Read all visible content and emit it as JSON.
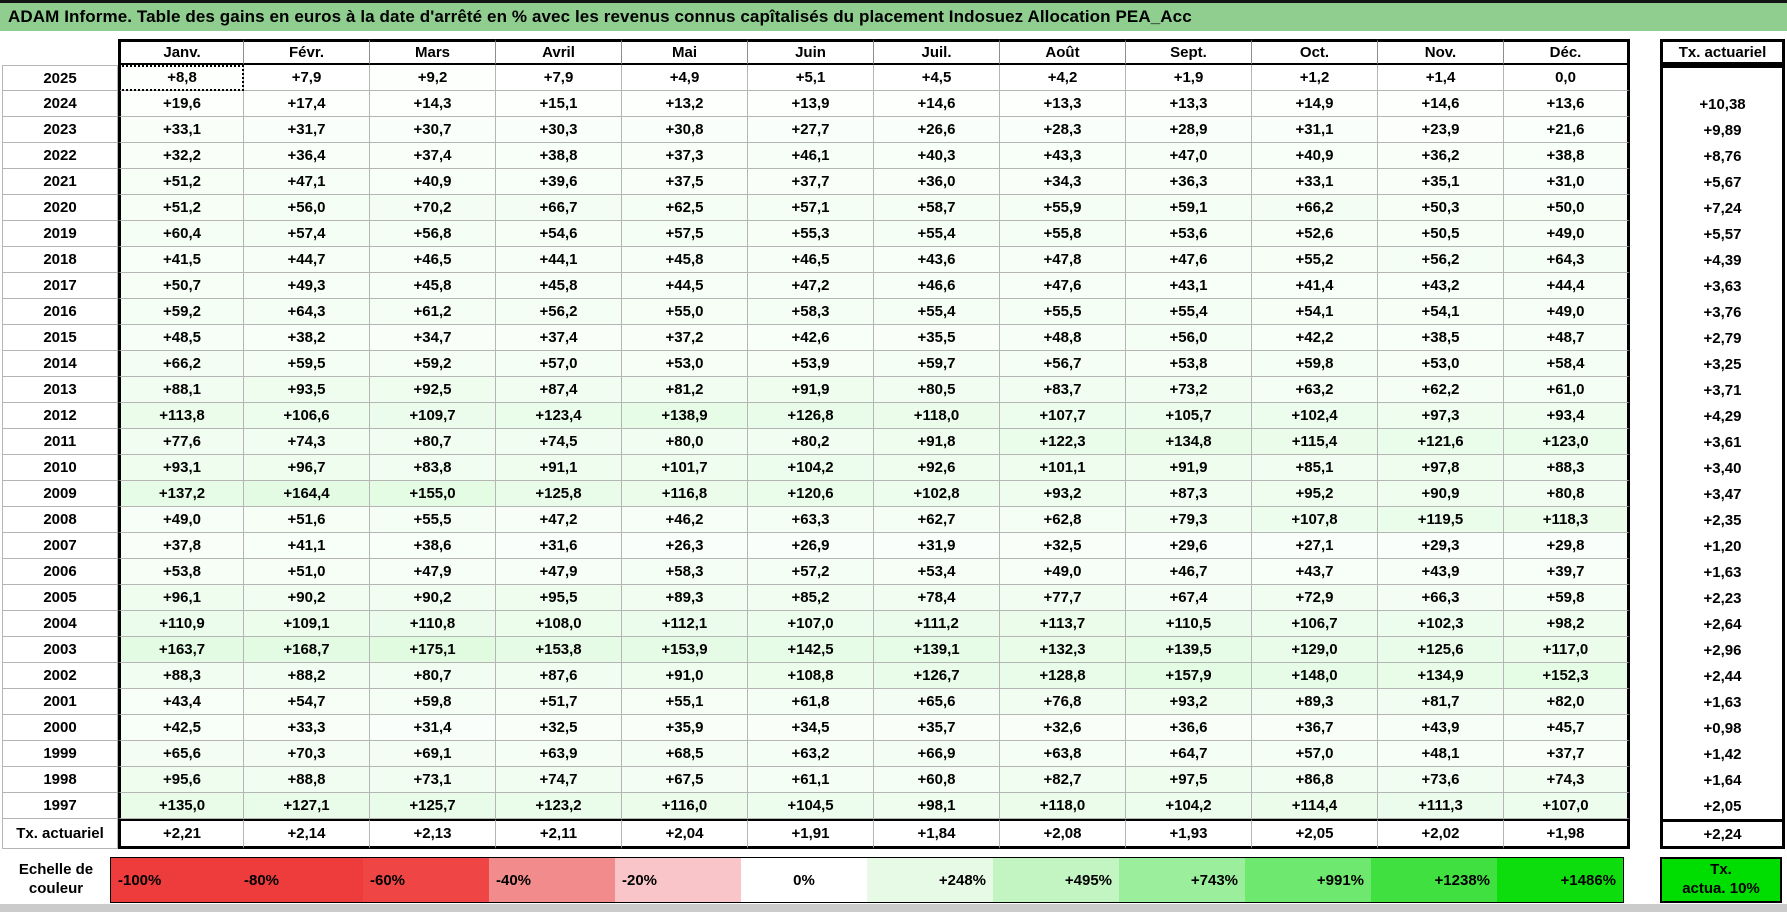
{
  "title": "ADAM Informe. Table des gains en euros à la date d'arrêté en % avec les revenus connus capîtalisés du placement Indosuez Allocation PEA_Acc",
  "colors": {
    "title_bar": "#90ce90",
    "grid_line": "#b5b5b5",
    "thick_border": "#000000",
    "positive_scale_max": "#00dd00",
    "negative_scale_max": "#ee3b3b",
    "page_bottom_strip": "#cbcbcb"
  },
  "color_scale": {
    "max_positive_percent": 1486
  },
  "table": {
    "columns": [
      "Janv.",
      "Févr.",
      "Mars",
      "Avril",
      "Mai",
      "Juin",
      "Juil.",
      "Août",
      "Sept.",
      "Oct.",
      "Nov.",
      "Déc."
    ],
    "right_column_header": "Tx. actuariel",
    "rows": [
      {
        "label": "2025",
        "values": [
          "+8,8",
          "+7,9",
          "+9,2",
          "+7,9",
          "+4,9",
          "+5,1",
          "+4,5",
          "+4,2",
          "+1,9",
          "+1,2",
          "+1,4",
          "0,0"
        ],
        "tx": ""
      },
      {
        "label": "2024",
        "values": [
          "+19,6",
          "+17,4",
          "+14,3",
          "+15,1",
          "+13,2",
          "+13,9",
          "+14,6",
          "+13,3",
          "+13,3",
          "+14,9",
          "+14,6",
          "+13,6"
        ],
        "tx": "+10,38"
      },
      {
        "label": "2023",
        "values": [
          "+33,1",
          "+31,7",
          "+30,7",
          "+30,3",
          "+30,8",
          "+27,7",
          "+26,6",
          "+28,3",
          "+28,9",
          "+31,1",
          "+23,9",
          "+21,6"
        ],
        "tx": "+9,89"
      },
      {
        "label": "2022",
        "values": [
          "+32,2",
          "+36,4",
          "+37,4",
          "+38,8",
          "+37,3",
          "+46,1",
          "+40,3",
          "+43,3",
          "+47,0",
          "+40,9",
          "+36,2",
          "+38,8"
        ],
        "tx": "+8,76"
      },
      {
        "label": "2021",
        "values": [
          "+51,2",
          "+47,1",
          "+40,9",
          "+39,6",
          "+37,5",
          "+37,7",
          "+36,0",
          "+34,3",
          "+36,3",
          "+33,1",
          "+35,1",
          "+31,0"
        ],
        "tx": "+5,67"
      },
      {
        "label": "2020",
        "values": [
          "+51,2",
          "+56,0",
          "+70,2",
          "+66,7",
          "+62,5",
          "+57,1",
          "+58,7",
          "+55,9",
          "+59,1",
          "+66,2",
          "+50,3",
          "+50,0"
        ],
        "tx": "+7,24"
      },
      {
        "label": "2019",
        "values": [
          "+60,4",
          "+57,4",
          "+56,8",
          "+54,6",
          "+57,5",
          "+55,3",
          "+55,4",
          "+55,8",
          "+53,6",
          "+52,6",
          "+50,5",
          "+49,0"
        ],
        "tx": "+5,57"
      },
      {
        "label": "2018",
        "values": [
          "+41,5",
          "+44,7",
          "+46,5",
          "+44,1",
          "+45,8",
          "+46,5",
          "+43,6",
          "+47,8",
          "+47,6",
          "+55,2",
          "+56,2",
          "+64,3"
        ],
        "tx": "+4,39"
      },
      {
        "label": "2017",
        "values": [
          "+50,7",
          "+49,3",
          "+45,8",
          "+45,8",
          "+44,5",
          "+47,2",
          "+46,6",
          "+47,6",
          "+43,1",
          "+41,4",
          "+43,2",
          "+44,4"
        ],
        "tx": "+3,63"
      },
      {
        "label": "2016",
        "values": [
          "+59,2",
          "+64,3",
          "+61,2",
          "+56,2",
          "+55,0",
          "+58,3",
          "+55,4",
          "+55,5",
          "+55,4",
          "+54,1",
          "+54,1",
          "+49,0"
        ],
        "tx": "+3,76"
      },
      {
        "label": "2015",
        "values": [
          "+48,5",
          "+38,2",
          "+34,7",
          "+37,4",
          "+37,2",
          "+42,6",
          "+35,5",
          "+48,8",
          "+56,0",
          "+42,2",
          "+38,5",
          "+48,7"
        ],
        "tx": "+2,79"
      },
      {
        "label": "2014",
        "values": [
          "+66,2",
          "+59,5",
          "+59,2",
          "+57,0",
          "+53,0",
          "+53,9",
          "+59,7",
          "+56,7",
          "+53,8",
          "+59,8",
          "+53,0",
          "+58,4"
        ],
        "tx": "+3,25"
      },
      {
        "label": "2013",
        "values": [
          "+88,1",
          "+93,5",
          "+92,5",
          "+87,4",
          "+81,2",
          "+91,9",
          "+80,5",
          "+83,7",
          "+73,2",
          "+63,2",
          "+62,2",
          "+61,0"
        ],
        "tx": "+3,71"
      },
      {
        "label": "2012",
        "values": [
          "+113,8",
          "+106,6",
          "+109,7",
          "+123,4",
          "+138,9",
          "+126,8",
          "+118,0",
          "+107,7",
          "+105,7",
          "+102,4",
          "+97,3",
          "+93,4"
        ],
        "tx": "+4,29"
      },
      {
        "label": "2011",
        "values": [
          "+77,6",
          "+74,3",
          "+80,7",
          "+74,5",
          "+80,0",
          "+80,2",
          "+91,8",
          "+122,3",
          "+134,8",
          "+115,4",
          "+121,6",
          "+123,0"
        ],
        "tx": "+3,61"
      },
      {
        "label": "2010",
        "values": [
          "+93,1",
          "+96,7",
          "+83,8",
          "+91,1",
          "+101,7",
          "+104,2",
          "+92,6",
          "+101,1",
          "+91,9",
          "+85,1",
          "+97,8",
          "+88,3"
        ],
        "tx": "+3,40"
      },
      {
        "label": "2009",
        "values": [
          "+137,2",
          "+164,4",
          "+155,0",
          "+125,8",
          "+116,8",
          "+120,6",
          "+102,8",
          "+93,2",
          "+87,3",
          "+95,2",
          "+90,9",
          "+80,8"
        ],
        "tx": "+3,47"
      },
      {
        "label": "2008",
        "values": [
          "+49,0",
          "+51,6",
          "+55,5",
          "+47,2",
          "+46,2",
          "+63,3",
          "+62,7",
          "+62,8",
          "+79,3",
          "+107,8",
          "+119,5",
          "+118,3"
        ],
        "tx": "+2,35"
      },
      {
        "label": "2007",
        "values": [
          "+37,8",
          "+41,1",
          "+38,6",
          "+31,6",
          "+26,3",
          "+26,9",
          "+31,9",
          "+32,5",
          "+29,6",
          "+27,1",
          "+29,3",
          "+29,8"
        ],
        "tx": "+1,20"
      },
      {
        "label": "2006",
        "values": [
          "+53,8",
          "+51,0",
          "+47,9",
          "+47,9",
          "+58,3",
          "+57,2",
          "+53,4",
          "+49,0",
          "+46,7",
          "+43,7",
          "+43,9",
          "+39,7"
        ],
        "tx": "+1,63"
      },
      {
        "label": "2005",
        "values": [
          "+96,1",
          "+90,2",
          "+90,2",
          "+95,5",
          "+89,3",
          "+85,2",
          "+78,4",
          "+77,7",
          "+67,4",
          "+72,9",
          "+66,3",
          "+59,8"
        ],
        "tx": "+2,23"
      },
      {
        "label": "2004",
        "values": [
          "+110,9",
          "+109,1",
          "+110,8",
          "+108,0",
          "+112,1",
          "+107,0",
          "+111,2",
          "+113,7",
          "+110,5",
          "+106,7",
          "+102,3",
          "+98,2"
        ],
        "tx": "+2,64"
      },
      {
        "label": "2003",
        "values": [
          "+163,7",
          "+168,7",
          "+175,1",
          "+153,8",
          "+153,9",
          "+142,5",
          "+139,1",
          "+132,3",
          "+139,5",
          "+129,0",
          "+125,6",
          "+117,0"
        ],
        "tx": "+2,96"
      },
      {
        "label": "2002",
        "values": [
          "+88,3",
          "+88,2",
          "+80,7",
          "+87,6",
          "+91,0",
          "+108,8",
          "+126,7",
          "+128,8",
          "+157,9",
          "+148,0",
          "+134,9",
          "+152,3"
        ],
        "tx": "+2,44"
      },
      {
        "label": "2001",
        "values": [
          "+43,4",
          "+54,7",
          "+59,8",
          "+51,7",
          "+55,1",
          "+61,8",
          "+65,6",
          "+76,8",
          "+93,2",
          "+89,3",
          "+81,7",
          "+82,0"
        ],
        "tx": "+1,63"
      },
      {
        "label": "2000",
        "values": [
          "+42,5",
          "+33,3",
          "+31,4",
          "+32,5",
          "+35,9",
          "+34,5",
          "+35,7",
          "+32,6",
          "+36,6",
          "+36,7",
          "+43,9",
          "+45,7"
        ],
        "tx": "+0,98"
      },
      {
        "label": "1999",
        "values": [
          "+65,6",
          "+70,3",
          "+69,1",
          "+63,9",
          "+68,5",
          "+63,2",
          "+66,9",
          "+63,8",
          "+64,7",
          "+57,0",
          "+48,1",
          "+37,7"
        ],
        "tx": "+1,42"
      },
      {
        "label": "1998",
        "values": [
          "+95,6",
          "+88,8",
          "+73,1",
          "+74,7",
          "+67,5",
          "+61,1",
          "+60,8",
          "+82,7",
          "+97,5",
          "+86,8",
          "+73,6",
          "+74,3"
        ],
        "tx": "+1,64"
      },
      {
        "label": "1997",
        "values": [
          "+135,0",
          "+127,1",
          "+125,7",
          "+123,2",
          "+116,0",
          "+104,5",
          "+98,1",
          "+118,0",
          "+104,2",
          "+114,4",
          "+111,3",
          "+107,0"
        ],
        "tx": "+2,05"
      },
      {
        "label": "Tx. actuariel",
        "values": [
          "+2,21",
          "+2,14",
          "+2,13",
          "+2,11",
          "+2,04",
          "+1,91",
          "+1,84",
          "+2,08",
          "+1,93",
          "+2,05",
          "+2,02",
          "+1,98"
        ],
        "tx": "+2,24"
      }
    ]
  },
  "legend": {
    "label_line1": "Echelle de",
    "label_line2": "couleur",
    "cells": [
      {
        "label": "-100%",
        "color": "#ee3b3b"
      },
      {
        "label": "-80%",
        "color": "#ee3b3b"
      },
      {
        "label": "-60%",
        "color": "#ef4545"
      },
      {
        "label": "-40%",
        "color": "#f28b8b"
      },
      {
        "label": "-20%",
        "color": "#f9c5c8"
      },
      {
        "label": "0%",
        "color": "#ffffff"
      },
      {
        "label": "+248%",
        "color": "#e6fae6"
      },
      {
        "label": "+495%",
        "color": "#c3f5c3"
      },
      {
        "label": "+743%",
        "color": "#9bee9b"
      },
      {
        "label": "+991%",
        "color": "#6fe86f"
      },
      {
        "label": "+1238%",
        "color": "#41e041"
      },
      {
        "label": "+1486%",
        "color": "#0ddd0d"
      }
    ],
    "right_box": {
      "line1": "Tx.",
      "line2": "actua. 10%",
      "color": "#00dd00"
    }
  }
}
